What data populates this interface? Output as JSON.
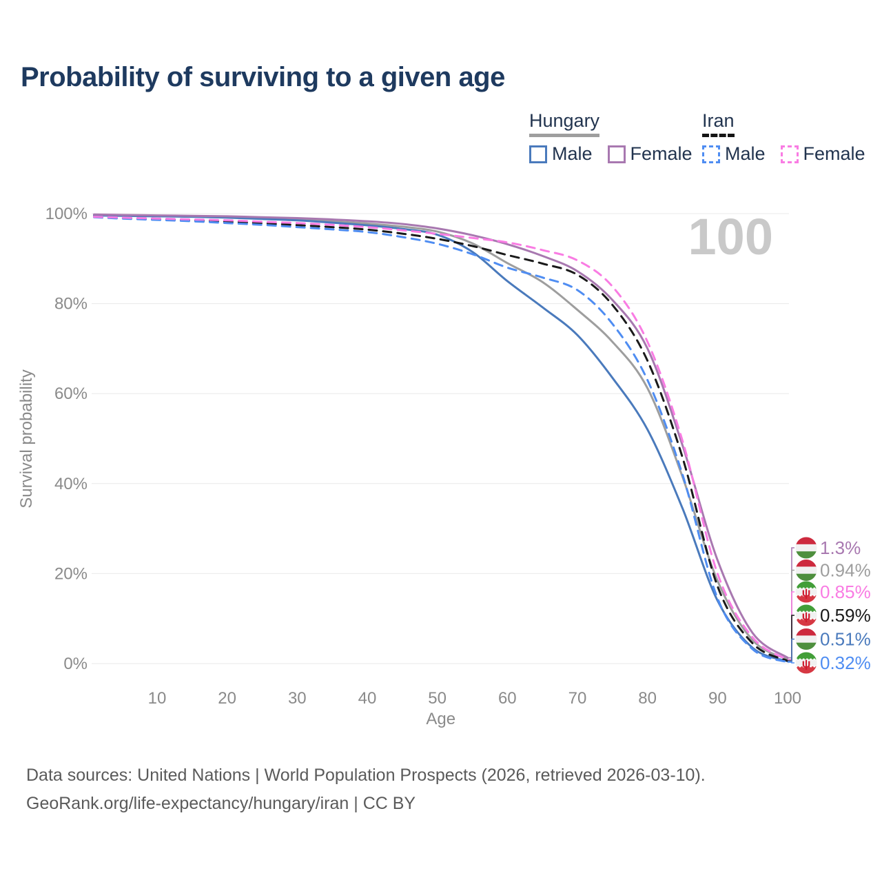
{
  "title": "Probability of surviving to a given age",
  "watermark": "100",
  "legend": {
    "groups": [
      {
        "label": "Hungary",
        "line_style": "solid",
        "underline_color": "#9e9e9e",
        "items": [
          {
            "label": "Male",
            "color": "#4a7abc"
          },
          {
            "label": "Female",
            "color": "#a878b0"
          }
        ]
      },
      {
        "label": "Iran",
        "line_style": "dashed",
        "underline_color": "#151515",
        "items": [
          {
            "label": "Male",
            "color": "#4f8df2"
          },
          {
            "label": "Female",
            "color": "#f97ce3"
          }
        ]
      }
    ]
  },
  "chart_data": {
    "type": "line",
    "title": "Probability of surviving to a given age",
    "xlabel": "Age",
    "ylabel": "Survival probability",
    "xlim": [
      0,
      100
    ],
    "ylim": [
      0,
      100
    ],
    "grid": "horizontal-only",
    "x_ticks": [
      10,
      20,
      30,
      40,
      50,
      60,
      70,
      80,
      90,
      100
    ],
    "y_ticks": [
      {
        "value": 100,
        "label": "100%"
      },
      {
        "value": 80,
        "label": "80%"
      },
      {
        "value": 60,
        "label": "60%"
      },
      {
        "value": 40,
        "label": "40%"
      },
      {
        "value": 20,
        "label": "20%"
      },
      {
        "value": 0,
        "label": "0%"
      }
    ],
    "ages": [
      0,
      1,
      5,
      10,
      15,
      20,
      25,
      30,
      35,
      40,
      45,
      50,
      55,
      60,
      65,
      70,
      75,
      80,
      85,
      90,
      95,
      100
    ],
    "series": [
      {
        "name": "Hungary — Both sexes",
        "country": "Hungary",
        "sex": "Total",
        "color": "#9e9e9e",
        "dash": "solid",
        "end_label": "0.94%",
        "values": [
          100,
          99.7,
          99.6,
          99.5,
          99.4,
          99.3,
          99.0,
          98.7,
          98.3,
          97.8,
          97.1,
          96.0,
          93.4,
          89.0,
          84.8,
          78.6,
          71.5,
          61.2,
          41.5,
          18.4,
          5.2,
          0.94
        ]
      },
      {
        "name": "Hungary — Male",
        "country": "Hungary",
        "sex": "Male",
        "color": "#4a7abc",
        "dash": "solid",
        "end_label": "0.51%",
        "values": [
          100,
          99.6,
          99.5,
          99.4,
          99.3,
          99.1,
          98.8,
          98.5,
          98.0,
          97.4,
          96.6,
          95.3,
          91.5,
          85.0,
          79.2,
          73.0,
          63.5,
          52.0,
          34.5,
          14.0,
          3.5,
          0.51
        ]
      },
      {
        "name": "Hungary — Female",
        "country": "Hungary",
        "sex": "Female",
        "color": "#a878b0",
        "dash": "solid",
        "end_label": "1.3%",
        "values": [
          100,
          99.8,
          99.7,
          99.6,
          99.5,
          99.4,
          99.2,
          99.0,
          98.7,
          98.3,
          97.7,
          96.7,
          95.2,
          93.2,
          90.6,
          87.2,
          80.8,
          70.0,
          48.5,
          23.0,
          6.8,
          1.3
        ]
      },
      {
        "name": "Iran — Both sexes",
        "country": "Iran",
        "sex": "Total",
        "color": "#1a1a1a",
        "dash": "dashed",
        "end_label": "0.59%",
        "values": [
          100,
          99.25,
          99.0,
          98.75,
          98.5,
          98.2,
          97.85,
          97.45,
          97.0,
          96.45,
          95.55,
          94.4,
          92.8,
          90.8,
          88.9,
          86.4,
          79.7,
          67.3,
          45.8,
          17.2,
          4.5,
          0.59
        ]
      },
      {
        "name": "Iran — Male",
        "country": "Iran",
        "sex": "Male",
        "color": "#4f8df2",
        "dash": "dashed",
        "end_label": "0.32%",
        "values": [
          100,
          99.2,
          98.9,
          98.6,
          98.3,
          97.9,
          97.5,
          97.0,
          96.5,
          95.9,
          94.8,
          93.3,
          91.0,
          88.0,
          85.8,
          83.0,
          75.5,
          63.0,
          42.0,
          14.5,
          3.2,
          0.32
        ]
      },
      {
        "name": "Iran — Female",
        "country": "Iran",
        "sex": "Female",
        "color": "#f97ce3",
        "dash": "dashed",
        "end_label": "0.85%",
        "values": [
          100,
          99.3,
          99.1,
          98.9,
          98.7,
          98.5,
          98.2,
          97.9,
          97.5,
          97.0,
          96.3,
          95.5,
          94.6,
          93.6,
          91.9,
          89.6,
          83.8,
          71.5,
          49.5,
          20.0,
          5.8,
          0.85
        ]
      }
    ],
    "end_labels": [
      {
        "series": "Hungary — Female",
        "flag": "hungary",
        "label": "1.3%"
      },
      {
        "series": "Hungary — Both sexes",
        "flag": "hungary",
        "label": "0.94%"
      },
      {
        "series": "Iran — Female",
        "flag": "iran",
        "label": "0.85%"
      },
      {
        "series": "Iran — Both sexes",
        "flag": "iran",
        "label": "0.59%"
      },
      {
        "series": "Hungary — Male",
        "flag": "hungary",
        "label": "0.51%"
      },
      {
        "series": "Iran — Male",
        "flag": "iran",
        "label": "0.32%"
      }
    ]
  },
  "flags": {
    "hungary": {
      "stripes": [
        "#cd2a3e",
        "#f1f1f1",
        "#4e8f3e"
      ]
    },
    "iran": {
      "stripes": [
        "#429e38",
        "#f1f1f1",
        "#d63843"
      ],
      "emblem": "ψ",
      "emblem_color": "#d01c2f"
    }
  },
  "footer": {
    "line1": "Data sources: United Nations | World Population Prospects (2026, retrieved 2026-03-10).",
    "line2": "GeoRank.org/life-expectancy/hungary/iran | CC BY"
  }
}
